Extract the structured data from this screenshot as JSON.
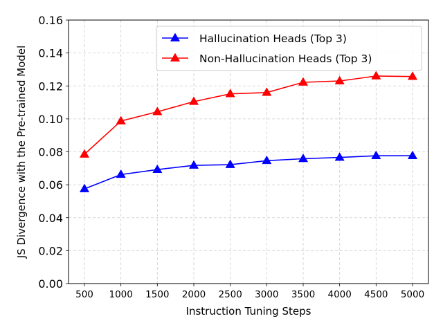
{
  "chart_data": {
    "type": "line",
    "xlabel": "Instruction Tuning Steps",
    "ylabel": "JS Divergence with the Pre-trained Model",
    "x": [
      500,
      1000,
      1500,
      2000,
      2500,
      3000,
      3500,
      4000,
      4500,
      5000
    ],
    "ylim": [
      0.0,
      0.16
    ],
    "yticks": [
      "0.00",
      "0.02",
      "0.04",
      "0.06",
      "0.08",
      "0.10",
      "0.12",
      "0.14",
      "0.16"
    ],
    "grid": true,
    "legend_position": "top-right",
    "series": [
      {
        "name": "Hallucination Heads (Top 3)",
        "color": "#0000ff",
        "marker": "triangle-up",
        "values": [
          0.0575,
          0.0662,
          0.0692,
          0.0718,
          0.0722,
          0.0746,
          0.0758,
          0.0766,
          0.0776,
          0.0776
        ]
      },
      {
        "name": "Non-Hallucination Heads (Top 3)",
        "color": "#ff0000",
        "marker": "triangle-up",
        "values": [
          0.0785,
          0.0987,
          0.1043,
          0.1105,
          0.1152,
          0.116,
          0.1222,
          0.123,
          0.126,
          0.1257
        ]
      }
    ]
  }
}
